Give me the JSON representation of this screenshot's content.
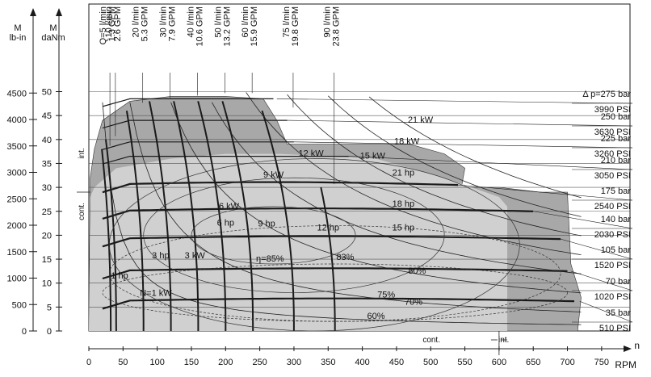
{
  "chart_data": {
    "type": "line",
    "title": "",
    "axes": {
      "left_label_lbin": [
        "M",
        "lb-in"
      ],
      "left_label_danm": [
        "M",
        "daNm"
      ],
      "bottom_label_rpm": "RPM",
      "bottom_label_n": "n",
      "lbin_ticks": [
        "4500",
        "4000",
        "3500",
        "3000",
        "2500",
        "2000",
        "1500",
        "1000",
        "500",
        "0"
      ],
      "lbin_values": [
        4500,
        4000,
        3500,
        3000,
        2500,
        2000,
        1500,
        1000,
        500,
        0
      ],
      "danm_ticks": [
        "50",
        "45",
        "40",
        "35",
        "30",
        "25",
        "20",
        "15",
        "10",
        "5",
        "0"
      ],
      "danm_values": [
        50,
        45,
        40,
        35,
        30,
        25,
        20,
        15,
        10,
        5,
        0
      ],
      "rpm_ticks": [
        "0",
        "50",
        "100",
        "150",
        "200",
        "250",
        "300",
        "350",
        "400",
        "450",
        "500",
        "550",
        "600",
        "650",
        "700",
        "750"
      ],
      "rpm_values": [
        0,
        50,
        100,
        150,
        200,
        250,
        300,
        350,
        400,
        450,
        500,
        550,
        600,
        650,
        700,
        750
      ],
      "xlim": [
        0,
        750
      ],
      "ylim_danm": [
        0,
        50
      ]
    },
    "zones": {
      "int_label": "int.",
      "cont_label": "cont.",
      "cont_bottom": "cont.",
      "int_bottom": "int.",
      "cont_limit_rpm": 600,
      "int_limit_danm": 29
    },
    "flows": [
      {
        "lpm": "Q=5 l/min",
        "gpm": "1.3 GPM",
        "rpm": 32
      },
      {
        "lpm": "10 l/min",
        "gpm": "2.6 GPM",
        "rpm": 40
      },
      {
        "lpm": "20 l/min",
        "gpm": "5.3 GPM",
        "rpm": 80
      },
      {
        "lpm": "30 l/min",
        "gpm": "7.9 GPM",
        "rpm": 120
      },
      {
        "lpm": "40 l/min",
        "gpm": "10.6 GPM",
        "rpm": 160
      },
      {
        "lpm": "50 l/min",
        "gpm": "13.2 GPM",
        "rpm": 200
      },
      {
        "lpm": "60 l/min",
        "gpm": "15.9 GPM",
        "rpm": 240
      },
      {
        "lpm": "75 l/min",
        "gpm": "19.8 GPM",
        "rpm": 300
      },
      {
        "lpm": "90 l/min",
        "gpm": "23.8 GPM",
        "rpm": 360
      }
    ],
    "pressures": [
      {
        "bar": "Δ p=275 bar",
        "psi": "3990 PSI",
        "torque_danm": 48.5
      },
      {
        "bar": "250 bar",
        "psi": "3630 PSI",
        "torque_danm": 44.0
      },
      {
        "bar": "225 bar",
        "psi": "3260 PSI",
        "torque_danm": 39.5
      },
      {
        "bar": "210 bar",
        "psi": "3050 PSI",
        "torque_danm": 36.5
      },
      {
        "bar": "175 bar",
        "psi": "2540 PSI",
        "torque_danm": 30.5
      },
      {
        "bar": "140 bar",
        "psi": "2030 PSI",
        "torque_danm": 25.0
      },
      {
        "bar": "105 bar",
        "psi": "1520 PSI",
        "torque_danm": 19.2
      },
      {
        "bar": "70 bar",
        "psi": "1020 PSI",
        "torque_danm": 12.5
      },
      {
        "bar": "35 bar",
        "psi": "510 PSI",
        "torque_danm": 6.2
      }
    ],
    "power_labels": [
      {
        "text": "21 kW",
        "rpm": 485,
        "danm": 43.5
      },
      {
        "text": "18 kW",
        "rpm": 465,
        "danm": 39.0
      },
      {
        "text": "15 kW",
        "rpm": 415,
        "danm": 36.0
      },
      {
        "text": "12 kW",
        "rpm": 325,
        "danm": 36.5
      },
      {
        "text": "9 kW",
        "rpm": 270,
        "danm": 32.0
      },
      {
        "text": "6 kW",
        "rpm": 205,
        "danm": 25.5
      },
      {
        "text": "3 kW",
        "rpm": 155,
        "danm": 15.2
      },
      {
        "text": "N=1 kW",
        "rpm": 98,
        "danm": 7.3
      },
      {
        "text": "21 hp",
        "rpm": 460,
        "danm": 32.5
      },
      {
        "text": "18 hp",
        "rpm": 460,
        "danm": 26.0
      },
      {
        "text": "15 hp",
        "rpm": 460,
        "danm": 21.0
      },
      {
        "text": "12 hp",
        "rpm": 350,
        "danm": 21.0
      },
      {
        "text": "9 hp",
        "rpm": 260,
        "danm": 21.8
      },
      {
        "text": "6 hp",
        "rpm": 200,
        "danm": 22.0
      },
      {
        "text": "3 hp",
        "rpm": 105,
        "danm": 15.2
      },
      {
        "text": "1 hp",
        "rpm": 45,
        "danm": 11.0
      }
    ],
    "efficiency_labels": [
      {
        "text": "η=85%",
        "rpm": 265,
        "danm": 14.5
      },
      {
        "text": "83%",
        "rpm": 375,
        "danm": 14.8
      },
      {
        "text": "80%",
        "rpm": 480,
        "danm": 12.0
      },
      {
        "text": "75%",
        "rpm": 435,
        "danm": 7.0
      },
      {
        "text": "70%",
        "rpm": 475,
        "danm": 5.5
      },
      {
        "text": "60%",
        "rpm": 420,
        "danm": 2.5
      }
    ],
    "grid": true
  },
  "colors": {
    "cont_fill": "#d0d0d0",
    "int_fill": "#a8a8a8",
    "background": "#ffffff",
    "line": "#1a1a1a"
  }
}
